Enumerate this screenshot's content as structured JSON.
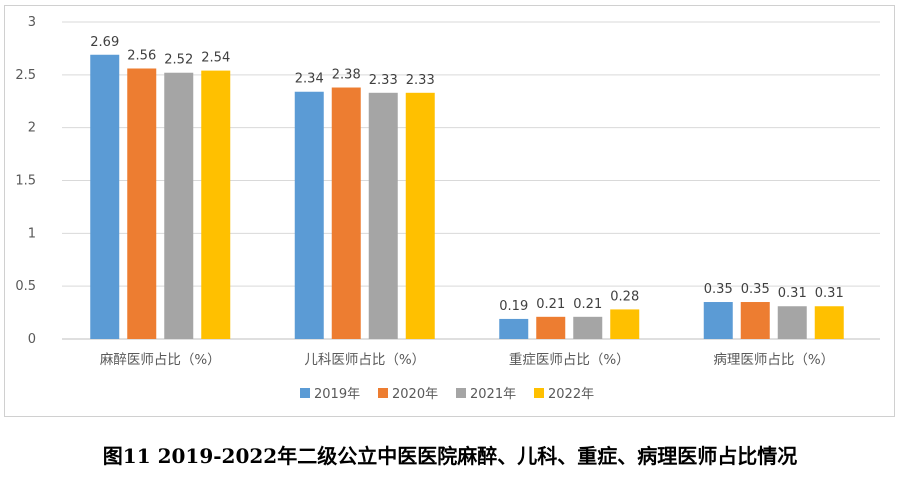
{
  "chart_data": {
    "type": "bar",
    "categories": [
      "麻醉医师占比（%）",
      "儿科医师占比（%）",
      "重症医师占比（%）",
      "病理医师占比（%）"
    ],
    "series": [
      {
        "name": "2019年",
        "values": [
          2.69,
          2.34,
          0.19,
          0.35
        ],
        "color": "#5b9bd5"
      },
      {
        "name": "2020年",
        "values": [
          2.56,
          2.38,
          0.21,
          0.35
        ],
        "color": "#ed7d31"
      },
      {
        "name": "2021年",
        "values": [
          2.52,
          2.33,
          0.21,
          0.31
        ],
        "color": "#a5a5a5"
      },
      {
        "name": "2022年",
        "values": [
          2.54,
          2.33,
          0.28,
          0.31
        ],
        "color": "#ffc000"
      }
    ],
    "ylim": [
      0,
      3
    ],
    "yticks": [
      "0",
      "0.5",
      "1",
      "1.5",
      "2",
      "2.5",
      "3"
    ],
    "grid": true,
    "legend_position": "bottom",
    "data_labels": true
  },
  "caption": "图11 2019-2022年二级公立中医医院麻醉、儿科、重症、病理医师占比情况"
}
